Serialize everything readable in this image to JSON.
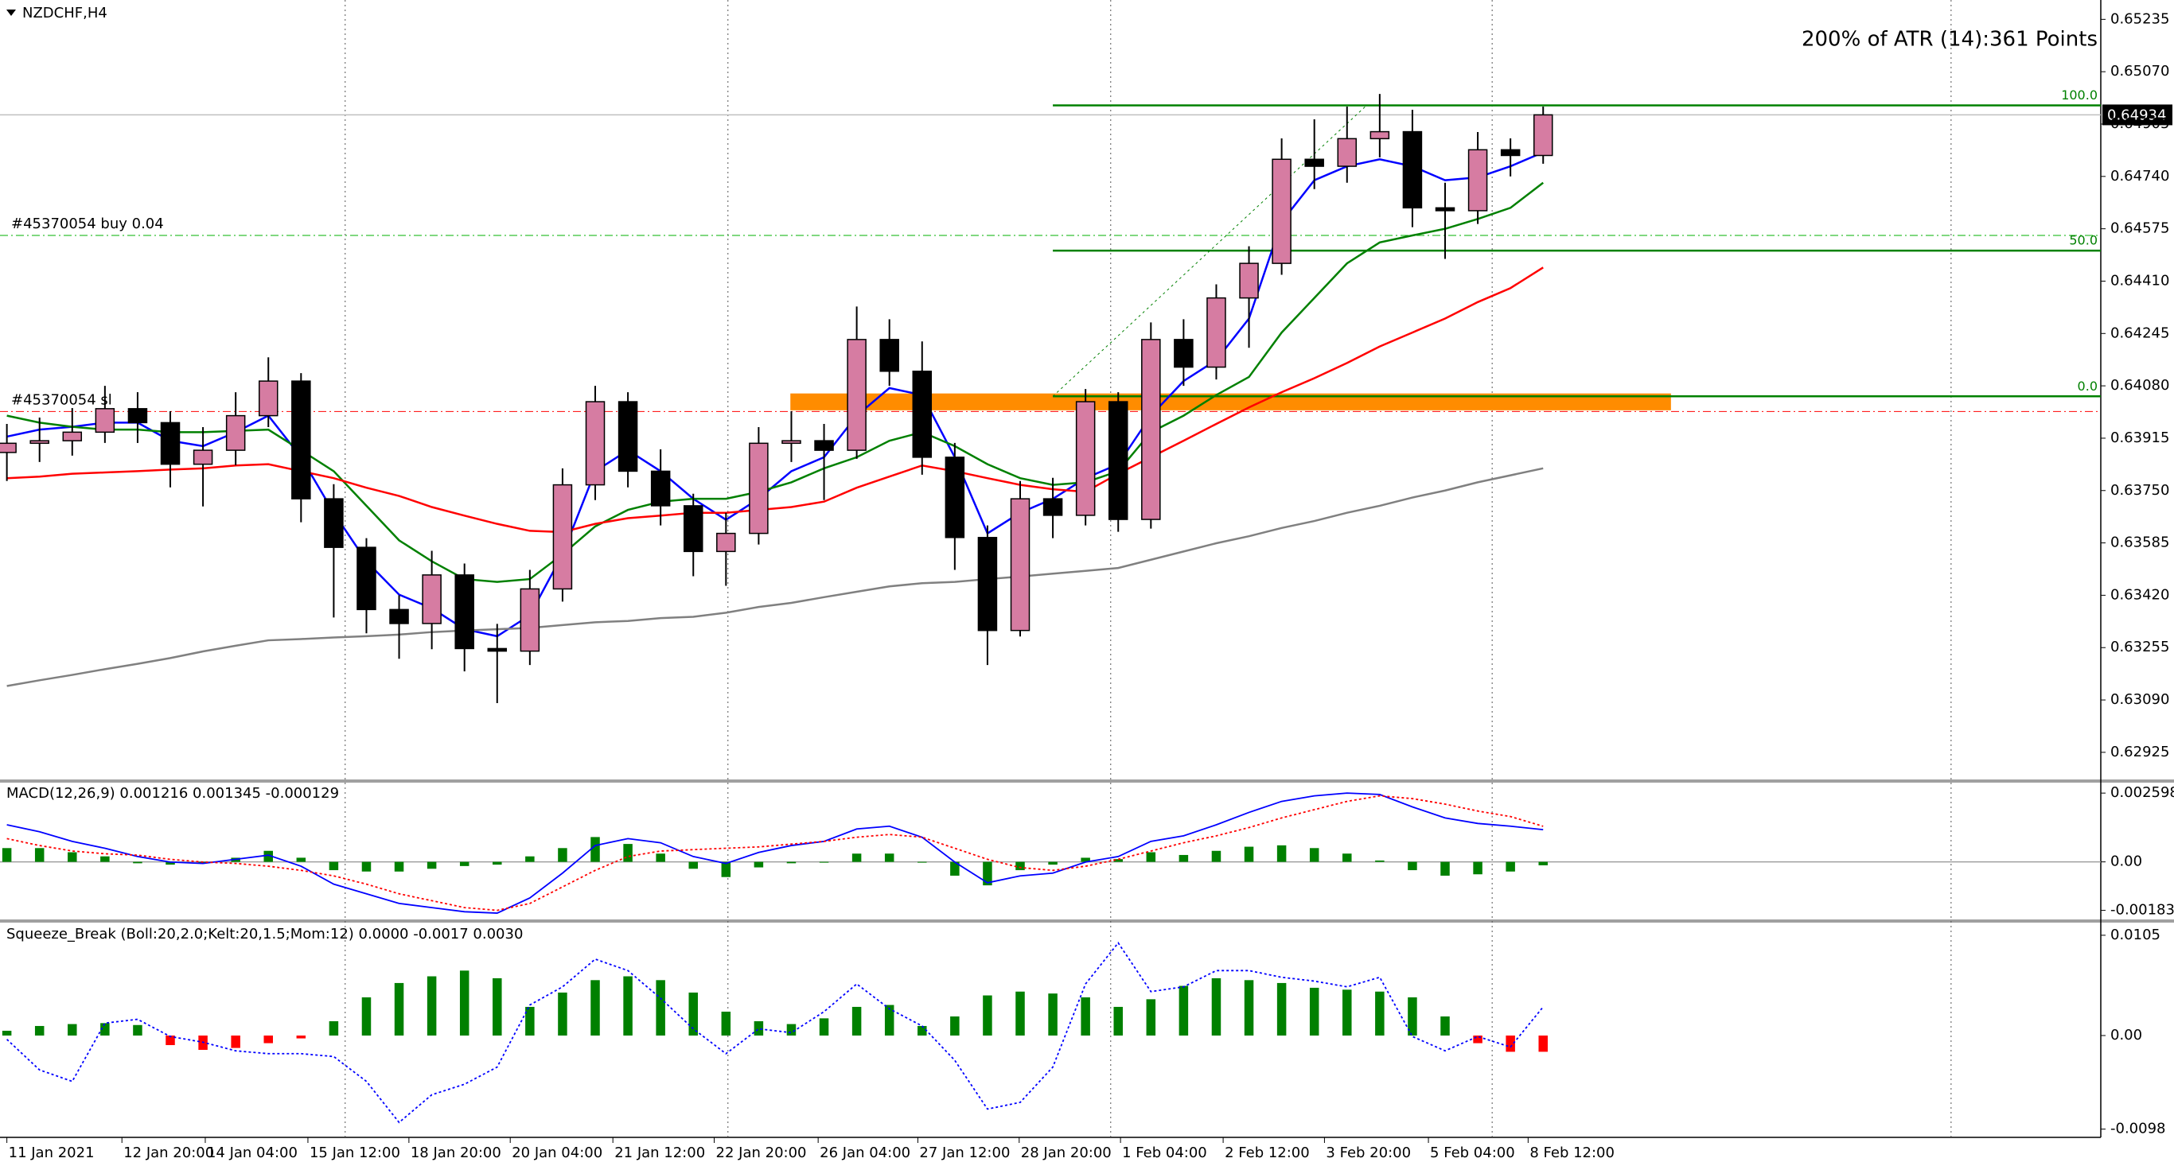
{
  "chart_data": [
    {
      "type": "candlestick",
      "title": "NZDCHF,H4",
      "annotation": "200% of ATR (14):361 Points",
      "annotation_color": "#ff0000",
      "open": [
        0.6387,
        0.63899,
        0.63907,
        0.63934,
        0.64008,
        0.63964,
        0.63833,
        0.63877,
        0.63986,
        0.64095,
        0.63724,
        0.63571,
        0.63375,
        0.63331,
        0.63484,
        0.63252,
        0.63244,
        0.6344,
        0.63768,
        0.6403,
        0.63811,
        0.63702,
        0.63558,
        0.63615,
        0.63899,
        0.63907,
        0.63877,
        0.64226,
        0.64126,
        0.63855,
        0.63602,
        0.63309,
        0.63724,
        0.63672,
        0.6403,
        0.63659,
        0.64226,
        0.64139,
        0.64357,
        0.64466,
        0.64794,
        0.64772,
        0.64859,
        0.64881,
        0.64641,
        0.64632,
        0.64824,
        0.64806
      ],
      "high": [
        0.6396,
        0.6398,
        0.6401,
        0.6408,
        0.6406,
        0.64,
        0.6395,
        0.6406,
        0.6417,
        0.6412,
        0.6377,
        0.636,
        0.6342,
        0.6356,
        0.6352,
        0.6333,
        0.635,
        0.6382,
        0.6408,
        0.6406,
        0.6388,
        0.6374,
        0.6368,
        0.6395,
        0.64,
        0.6396,
        0.6433,
        0.6429,
        0.6422,
        0.639,
        0.6364,
        0.6378,
        0.6379,
        0.6407,
        0.6406,
        0.6428,
        0.6429,
        0.644,
        0.6452,
        0.6486,
        0.6492,
        0.6496,
        0.65,
        0.6495,
        0.6472,
        0.6488,
        0.6486,
        0.6496
      ],
      "low": [
        0.6378,
        0.6384,
        0.6386,
        0.639,
        0.639,
        0.6376,
        0.637,
        0.6383,
        0.6395,
        0.6365,
        0.6335,
        0.633,
        0.6322,
        0.6325,
        0.6318,
        0.6308,
        0.632,
        0.634,
        0.6372,
        0.6376,
        0.6364,
        0.6348,
        0.6345,
        0.6358,
        0.6384,
        0.6372,
        0.6385,
        0.6408,
        0.638,
        0.635,
        0.632,
        0.6329,
        0.636,
        0.6364,
        0.6362,
        0.6363,
        0.6408,
        0.641,
        0.642,
        0.6443,
        0.647,
        0.6472,
        0.648,
        0.6458,
        0.6448,
        0.6459,
        0.6474,
        0.6478
      ],
      "close": [
        0.63899,
        0.63907,
        0.63934,
        0.64008,
        0.63964,
        0.63833,
        0.63877,
        0.63986,
        0.64095,
        0.63724,
        0.63571,
        0.63375,
        0.63331,
        0.63484,
        0.63252,
        0.63244,
        0.6344,
        0.63768,
        0.6403,
        0.63811,
        0.63702,
        0.63558,
        0.63615,
        0.63899,
        0.63907,
        0.63877,
        0.64226,
        0.64126,
        0.63855,
        0.63602,
        0.63309,
        0.63724,
        0.63672,
        0.6403,
        0.63659,
        0.64226,
        0.64139,
        0.64357,
        0.64466,
        0.64794,
        0.64772,
        0.64859,
        0.64881,
        0.64641,
        0.64632,
        0.64824,
        0.64806,
        0.64934
      ],
      "up_color": "#d67ca2",
      "down_color": "#000000",
      "moving_averages": [
        {
          "color": "#0000ff",
          "values": [
            0.6392,
            0.63942,
            0.63951,
            0.63964,
            0.63964,
            0.63907,
            0.6389,
            0.63934,
            0.63986,
            0.63855,
            0.6368,
            0.63527,
            0.63422,
            0.63379,
            0.63313,
            0.63291,
            0.63357,
            0.63549,
            0.63811,
            0.63877,
            0.63811,
            0.63724,
            0.63658,
            0.63724,
            0.63811,
            0.63855,
            0.63986,
            0.64073,
            0.64051,
            0.63855,
            0.63615,
            0.6368,
            0.63724,
            0.63789,
            0.63833,
            0.63986,
            0.64095,
            0.64161,
            0.64292,
            0.64597,
            0.64728,
            0.64772,
            0.64794,
            0.64772,
            0.64728,
            0.64737,
            0.64772,
            0.64816
          ]
        },
        {
          "color": "#008000",
          "values": [
            0.63986,
            0.63964,
            0.63951,
            0.63942,
            0.63942,
            0.63934,
            0.63934,
            0.63938,
            0.63942,
            0.63877,
            0.63811,
            0.63702,
            0.63593,
            0.63527,
            0.63471,
            0.63462,
            0.63471,
            0.63549,
            0.63637,
            0.63689,
            0.63715,
            0.63724,
            0.63724,
            0.63746,
            0.63776,
            0.6382,
            0.63855,
            0.63907,
            0.63934,
            0.6389,
            0.63833,
            0.63789,
            0.63768,
            0.63776,
            0.63811,
            0.63934,
            0.63986,
            0.64051,
            0.64108,
            0.64248,
            0.64357,
            0.64466,
            0.64532,
            0.64554,
            0.64575,
            0.64606,
            0.64641,
            0.6472
          ]
        },
        {
          "color": "#ff0000",
          "values": [
            0.63789,
            0.63794,
            0.63803,
            0.63807,
            0.63811,
            0.63816,
            0.6382,
            0.63829,
            0.63833,
            0.63811,
            0.63789,
            0.63759,
            0.63733,
            0.63698,
            0.63671,
            0.63645,
            0.63623,
            0.63619,
            0.63645,
            0.63663,
            0.63671,
            0.6368,
            0.6368,
            0.63689,
            0.63698,
            0.63715,
            0.63759,
            0.63794,
            0.63829,
            0.63811,
            0.63789,
            0.63768,
            0.63754,
            0.63746,
            0.63803,
            0.63855,
            0.63907,
            0.6396,
            0.64012,
            0.6406,
            0.64104,
            0.64152,
            0.64204,
            0.64248,
            0.64292,
            0.64344,
            0.64388,
            0.64453
          ]
        },
        {
          "color": "#808080",
          "values": [
            0.63134,
            0.63152,
            0.63169,
            0.63187,
            0.63204,
            0.63222,
            0.63243,
            0.63261,
            0.63278,
            0.63282,
            0.63287,
            0.63291,
            0.63296,
            0.63304,
            0.63309,
            0.63313,
            0.63317,
            0.63326,
            0.63335,
            0.63339,
            0.63348,
            0.63352,
            0.63365,
            0.63383,
            0.63396,
            0.63414,
            0.63431,
            0.63448,
            0.63458,
            0.63462,
            0.63471,
            0.63479,
            0.63488,
            0.63497,
            0.63506,
            0.63532,
            0.63558,
            0.63584,
            0.63606,
            0.63632,
            0.63654,
            0.6368,
            0.63702,
            0.63728,
            0.6375,
            0.63776,
            0.63798,
            0.6382
          ]
        }
      ],
      "fibonacci": {
        "color": "#008000",
        "x": [
          32.0,
          41.6
        ],
        "levels": [
          {
            "label": "100.0",
            "value": 0.64964
          },
          {
            "label": "50.0",
            "value": 0.64506
          },
          {
            "label": "0.0",
            "value": 0.64047
          }
        ]
      },
      "orders": [
        {
          "label": "#45370054 buy 0.04",
          "value": 0.64554,
          "color": "#00b000"
        },
        {
          "label": "#45370054 sl",
          "value": 0.63999,
          "color": "#ff0000"
        }
      ],
      "zone": {
        "x": [
          23.97,
          50.91
        ],
        "range": [
          0.64003,
          0.64056
        ],
        "color": "#ff8c00"
      },
      "last_price": 0.64934,
      "xlim": [
        -0.21,
        64.06
      ],
      "ylim": [
        0.62842,
        0.65296
      ],
      "yticks": [
        0.65235,
        {
          "value": 0.6507,
          "label": "0.65070"
        },
        0.64905,
        {
          "value": 0.6474,
          "label": "0.64740"
        },
        0.64575,
        {
          "value": 0.6441,
          "label": "0.64410"
        },
        0.64245,
        {
          "value": 0.6408,
          "label": "0.64080"
        },
        0.63915,
        {
          "value": 0.6375,
          "label": "0.63750"
        },
        0.63585,
        {
          "value": 0.6342,
          "label": "0.63420"
        },
        0.63255,
        {
          "value": 0.6309,
          "label": "0.63090"
        },
        0.62925
      ],
      "xticks": [
        {
          "value": 0,
          "label": "11 Jan 2021"
        },
        {
          "value": 3.52,
          "label": "12 Jan 20:00"
        },
        {
          "value": 6.07,
          "label": "14 Jan 04:00"
        },
        {
          "value": 9.21,
          "label": "15 Jan 12:00"
        },
        {
          "value": 12.3,
          "label": "18 Jan 20:00"
        },
        {
          "value": 15.4,
          "label": "20 Jan 04:00"
        },
        {
          "value": 18.54,
          "label": "21 Jan 12:00"
        },
        {
          "value": 21.64,
          "label": "22 Jan 20:00"
        },
        {
          "value": 24.82,
          "label": "26 Jan 04:00"
        },
        {
          "value": 27.87,
          "label": "27 Jan 12:00"
        },
        {
          "value": 30.97,
          "label": "28 Jan 20:00"
        },
        {
          "value": 34.07,
          "label": "1 Feb 04:00"
        },
        {
          "value": 37.21,
          "label": "2 Feb 12:00"
        },
        {
          "value": 40.31,
          "label": "3 Feb 20:00"
        },
        {
          "value": 43.49,
          "label": "5 Feb 04:00"
        },
        {
          "value": 46.54,
          "label": "8 Feb 12:00"
        }
      ],
      "separators": [
        10.35,
        22.06,
        33.77,
        45.44,
        59.48
      ]
    },
    {
      "type": "indicator",
      "title": "MACD(12,26,9) 0.001216 0.001345 -0.000129",
      "zero_line": true,
      "ylim": [
        -0.002144,
        0.002963
      ],
      "yticks": [
        0.002598,
        {
          "value": 0,
          "label": "0.00"
        },
        -0.001831
      ],
      "series": [
        {
          "type": "bar",
          "color": "#008000",
          "values": [
            0.000521,
            0.000521,
            0.000364,
            0.000208,
            -5.2e-05,
            -0.000104,
            -5.2e-05,
            0.000156,
            0.000417,
            0.000157,
            -0.000313,
            -0.000364,
            -0.000365,
            -0.00026,
            -0.000157,
            -0.000104,
            0.000208,
            0.000521,
            0.000938,
            0.000677,
            0.000312,
            -0.00026,
            -0.000573,
            -0.000208,
            -5.2e-05,
            0,
            0.000312,
            0.000313,
            0,
            -0.000521,
            -0.000886,
            -0.000313,
            -0.000104,
            0.000156,
            0.000105,
            0.000364,
            0.000261,
            0.000417,
            0.000573,
            0.000625,
            0.000521,
            0.000313,
            5.2e-05,
            -0.000313,
            -0.000521,
            -0.000469,
            -0.000364,
            -0.000129
          ]
        },
        {
          "type": "line",
          "color": "#0000ff",
          "values": [
            0.0014,
            0.001139,
            0.000774,
            0.000514,
            0.000202,
            -7e-06,
            -5.9e-05,
            9.7e-05,
            0.000254,
            -0.000163,
            -0.000841,
            -0.001205,
            -0.00157,
            -0.001726,
            -0.001883,
            -0.001935,
            -0.001362,
            -0.000424,
            0.000618,
            0.000879,
            0.000722,
            0.000202,
            -5.9e-05,
            0.000358,
            0.000618,
            0.000774,
            0.001243,
            0.001348,
            0.000931,
            -7e-06,
            -0.000789,
            -0.000528,
            -0.000424,
            -7e-06,
            0.000202,
            0.000774,
            0.000983,
            0.0014,
            0.001869,
            0.002285,
            0.002494,
            0.002598,
            0.002546,
            0.002077,
            0.00166,
            0.001452,
            0.001348,
            0.001216
          ]
        },
        {
          "type": "line",
          "color": "#ff0000",
          "dash": true,
          "values": [
            0.000879,
            0.000618,
            0.00041,
            0.000306,
            0.000254,
            9.7e-05,
            -7e-06,
            -5.9e-05,
            -0.000163,
            -0.00032,
            -0.000528,
            -0.000841,
            -0.001205,
            -0.001466,
            -0.001726,
            -0.001831,
            -0.00157,
            -0.000945,
            -0.00032,
            0.000202,
            0.00041,
            0.000462,
            0.000514,
            0.000566,
            0.00067,
            0.000774,
            0.000931,
            0.001035,
            0.000931,
            0.000514,
            9.7e-05,
            -0.000215,
            -0.00032,
            -0.000163,
            9.7e-05,
            0.00041,
            0.000722,
            0.000983,
            0.001296,
            0.00166,
            0.001973,
            0.002285,
            0.002494,
            0.00239,
            0.002181,
            0.001921,
            0.001712,
            0.001345
          ]
        }
      ]
    },
    {
      "type": "indicator",
      "title": "Squeeze_Break (Boll:20,2.0;Kelt:20,1.5;Mom:12) 0.0000 -0.0017 0.0030",
      "zero_line": false,
      "ylim": [
        -0.01058,
        0.01174
      ],
      "yticks": [
        0.0105,
        {
          "value": 0,
          "label": "0.00"
        },
        -0.0098
      ],
      "series": [
        {
          "type": "bar",
          "color": "#008000",
          "negative_color": "#ff0000",
          "values": [
            0.0005,
            0.001,
            0.0012,
            0.0013,
            0.0011,
            -0.001,
            -0.0015,
            -0.0013,
            -0.0008,
            -0.0003,
            0.0015,
            0.004,
            0.0055,
            0.0062,
            0.0068,
            0.006,
            0.003,
            0.0045,
            0.0058,
            0.0062,
            0.0058,
            0.0045,
            0.0025,
            0.0015,
            0.0012,
            0.0018,
            0.003,
            0.0032,
            0.001,
            0.002,
            0.0042,
            0.0046,
            0.0044,
            0.004,
            0.003,
            0.0038,
            0.0052,
            0.006,
            0.0058,
            0.0055,
            0.005,
            0.0048,
            0.0046,
            0.004,
            0.002,
            -0.0008,
            -0.0017,
            -0.0017
          ]
        },
        {
          "type": "line",
          "color": "#0000ff",
          "dash": true,
          "values": [
            -0.0004,
            -0.0036,
            -0.0048,
            0.0013,
            0.0017,
            -0.0001,
            -0.0007,
            -0.0016,
            -0.0019,
            -0.0019,
            -0.0022,
            -0.0048,
            -0.0091,
            -0.0062,
            -0.0051,
            -0.0033,
            0.0032,
            0.0051,
            0.008,
            0.0068,
            0.0039,
            0.0007,
            -0.0019,
            0.0007,
            0.0003,
            0.0025,
            0.0054,
            0.0028,
            0.001,
            -0.0026,
            -0.0077,
            -0.007,
            -0.0033,
            0.0054,
            0.0097,
            0.0046,
            0.0051,
            0.0068,
            0.0068,
            0.0061,
            0.0057,
            0.0051,
            0.0061,
            -0.0001,
            -0.0016,
            -0.0001,
            -0.0012,
            0.003
          ]
        }
      ]
    }
  ]
}
